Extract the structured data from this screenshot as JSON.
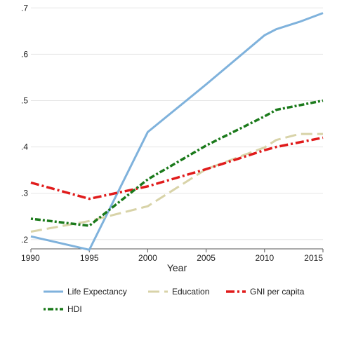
{
  "chart_data": {
    "type": "line",
    "title": "",
    "xlabel": "Year",
    "ylabel": "",
    "x": [
      1990,
      1995,
      2000,
      2005,
      2010,
      2011,
      2013,
      2015
    ],
    "xticks": [
      1990,
      1995,
      2000,
      2005,
      2010,
      2015
    ],
    "xtick_labels": [
      "1990",
      "1995",
      "2000",
      "2005",
      "2010",
      "2015"
    ],
    "yticks": [
      0.2,
      0.3,
      0.4,
      0.5,
      0.6,
      0.7
    ],
    "ytick_labels": [
      ".2",
      ".3",
      ".4",
      ".5",
      ".6",
      ".7"
    ],
    "xlim": [
      1990,
      2015
    ],
    "ylim": [
      0.18,
      0.705
    ],
    "grid": "horizontal",
    "legend_position": "bottom",
    "series": [
      {
        "name": "Life Expectancy",
        "color": "#7fb2dc",
        "dash": "solid",
        "values": [
          0.207,
          0.178,
          0.432,
          0.535,
          0.641,
          0.654,
          0.67,
          0.689
        ]
      },
      {
        "name": "Education",
        "color": "#d8d3a8",
        "dash": "long-dash",
        "values": [
          0.217,
          0.24,
          0.272,
          0.352,
          0.399,
          0.415,
          0.428,
          0.428
        ]
      },
      {
        "name": "GNI per capita",
        "color": "#e01b1b",
        "dash": "dash-dot",
        "values": [
          0.323,
          0.288,
          0.315,
          0.352,
          0.393,
          0.4,
          0.41,
          0.42
        ]
      },
      {
        "name": "HDI",
        "color": "#1b7a1b",
        "dash": "dot-dash",
        "values": [
          0.245,
          0.23,
          0.33,
          0.403,
          0.466,
          0.48,
          0.49,
          0.5
        ]
      }
    ]
  }
}
